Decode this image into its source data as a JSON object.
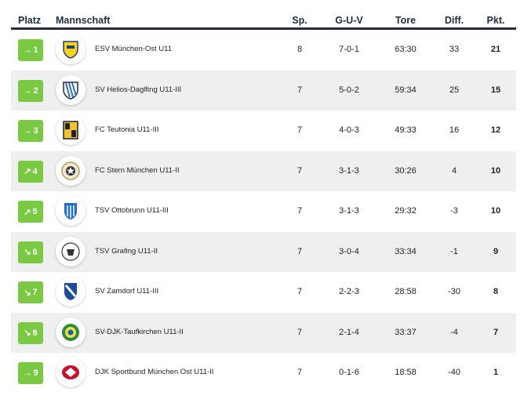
{
  "headers": {
    "platz": "Platz",
    "mannschaft": "Mannschaft",
    "sp": "Sp.",
    "guv": "G-U-V",
    "tore": "Tore",
    "diff": "Diff.",
    "pkt": "Pkt."
  },
  "colors": {
    "rank_badge": "#7ac943",
    "header_text": "#1f2d3d",
    "alt_row": "#efefef"
  },
  "rows": [
    {
      "trend": "→",
      "trend_icon": "arrow-right-icon",
      "rank": "1",
      "logo_icon": "esv-muenchen-ost-logo-icon",
      "team": "ESV München-Ost U11",
      "sp": "8",
      "guv": "7-0-1",
      "tore": "63:30",
      "diff": "33",
      "pkt": "21"
    },
    {
      "trend": "→",
      "trend_icon": "arrow-right-icon",
      "rank": "2",
      "logo_icon": "sv-helios-daglfing-logo-icon",
      "team": "SV Helios-Daglfing U11-III",
      "sp": "7",
      "guv": "5-0-2",
      "tore": "59:34",
      "diff": "25",
      "pkt": "15"
    },
    {
      "trend": "→",
      "trend_icon": "arrow-right-icon",
      "rank": "3",
      "logo_icon": "fc-teutonia-logo-icon",
      "team": "FC Teutonia U11-III",
      "sp": "7",
      "guv": "4-0-3",
      "tore": "49:33",
      "diff": "16",
      "pkt": "12"
    },
    {
      "trend": "↗",
      "trend_icon": "arrow-up-right-icon",
      "rank": "4",
      "logo_icon": "fc-stern-muenchen-logo-icon",
      "team": "FC Stern München U11-II",
      "sp": "7",
      "guv": "3-1-3",
      "tore": "30:26",
      "diff": "4",
      "pkt": "10"
    },
    {
      "trend": "↗",
      "trend_icon": "arrow-up-right-icon",
      "rank": "5",
      "logo_icon": "tsv-ottobrunn-logo-icon",
      "team": "TSV Ottobrunn U11-III",
      "sp": "7",
      "guv": "3-1-3",
      "tore": "29:32",
      "diff": "-3",
      "pkt": "10"
    },
    {
      "trend": "↘",
      "trend_icon": "arrow-down-right-icon",
      "rank": "6",
      "logo_icon": "tsv-grafing-logo-icon",
      "team": "TSV Grafing U11-II",
      "sp": "7",
      "guv": "3-0-4",
      "tore": "33:34",
      "diff": "-1",
      "pkt": "9"
    },
    {
      "trend": "↘",
      "trend_icon": "arrow-down-right-icon",
      "rank": "7",
      "logo_icon": "sv-zamdorf-logo-icon",
      "team": "SV Zamdorf U11-III",
      "sp": "7",
      "guv": "2-2-3",
      "tore": "28:58",
      "diff": "-30",
      "pkt": "8"
    },
    {
      "trend": "↘",
      "trend_icon": "arrow-down-right-icon",
      "rank": "8",
      "logo_icon": "sv-djk-taufkirchen-logo-icon",
      "team": "SV-DJK-Taufkirchen U11-II",
      "sp": "7",
      "guv": "2-1-4",
      "tore": "33:37",
      "diff": "-4",
      "pkt": "7"
    },
    {
      "trend": "→",
      "trend_icon": "arrow-right-icon",
      "rank": "9",
      "logo_icon": "djk-sportbund-muenchen-ost-logo-icon",
      "team": "DJK Sportbund München Ost U11-II",
      "sp": "7",
      "guv": "0-1-6",
      "tore": "18:58",
      "diff": "-40",
      "pkt": "1"
    }
  ]
}
